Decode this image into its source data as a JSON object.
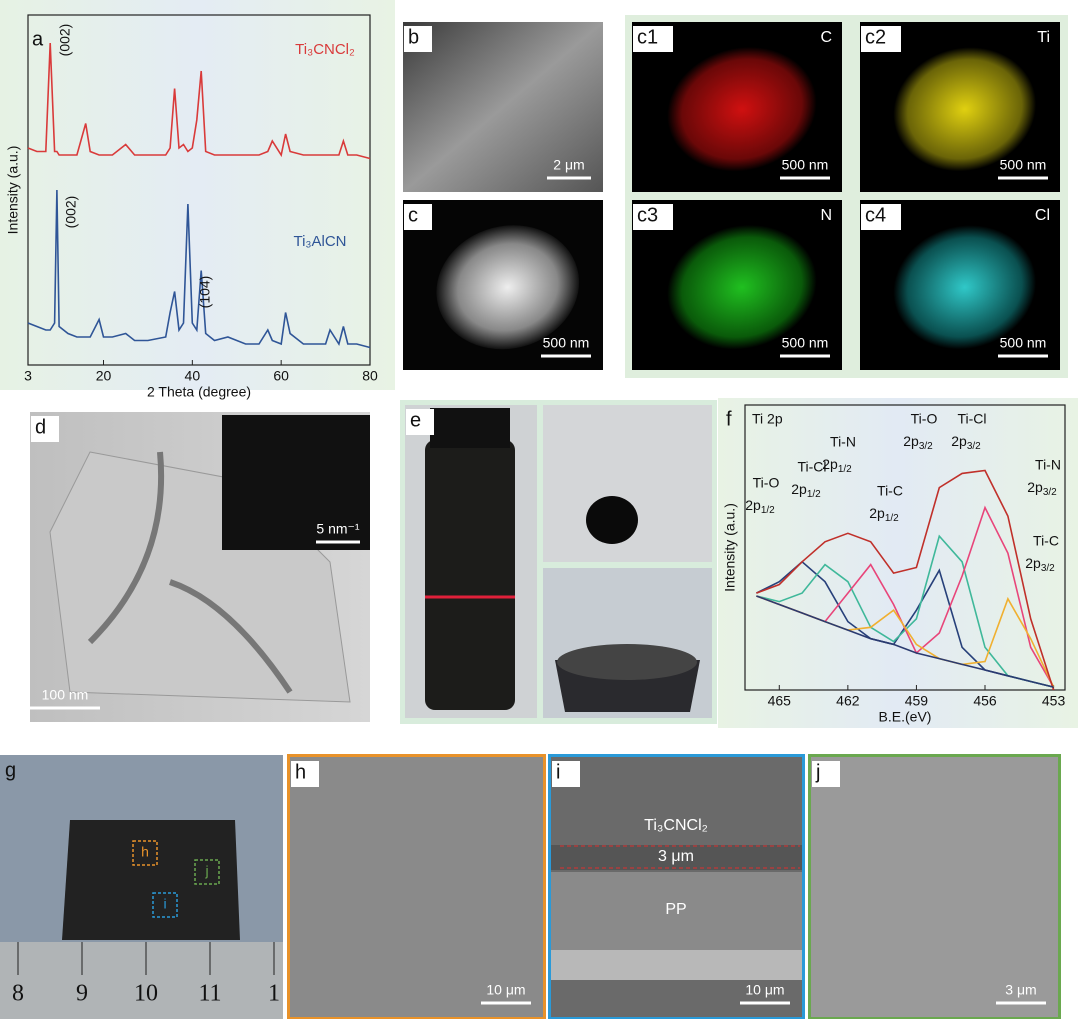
{
  "chart_data": [
    {
      "type": "line",
      "panel_label": "a",
      "xlabel": "2 Theta (degree)",
      "ylabel": "Intensity (a.u.)",
      "xlim": [
        3,
        80
      ],
      "xticks": [
        3,
        20,
        40,
        60,
        80
      ],
      "ylim": [
        0,
        100
      ],
      "x": [
        3,
        5,
        7,
        8,
        9,
        9.5,
        10,
        12,
        14,
        16,
        17,
        19,
        20,
        22,
        25,
        27,
        30,
        34,
        35,
        36,
        37,
        38,
        39,
        40,
        41,
        42,
        43,
        45,
        48,
        52,
        55,
        57,
        58,
        60,
        61,
        62,
        65,
        68,
        70,
        71,
        73,
        74,
        75,
        77,
        80
      ],
      "series": [
        {
          "name": "Ti₃CNCl₂",
          "color": "#d93a3a",
          "values": [
            62,
            61,
            61,
            92,
            61,
            61,
            60,
            60,
            60,
            69,
            61,
            60,
            60,
            60,
            63,
            60,
            60,
            60,
            62,
            79,
            62,
            63,
            61,
            62,
            70,
            84,
            61,
            60,
            60,
            60,
            60,
            61,
            64,
            60,
            66,
            61,
            60,
            60,
            60,
            60,
            60,
            64,
            60,
            60,
            59
          ]
        },
        {
          "name": "Ti₃AlCN",
          "color": "#2f5597",
          "values": [
            12,
            11,
            10,
            10,
            12,
            50,
            11,
            9,
            8,
            8,
            8,
            13,
            8,
            8,
            9,
            7,
            7,
            8,
            15,
            21,
            10,
            12,
            46,
            12,
            10,
            27,
            9,
            7,
            8,
            6,
            6,
            10,
            7,
            6,
            15,
            9,
            6,
            6,
            6,
            10,
            6,
            11,
            6,
            6,
            5
          ]
        }
      ],
      "annotations": [
        "(002)",
        "(002)",
        "(104)"
      ]
    },
    {
      "type": "line",
      "panel_label": "f",
      "inner_label": "Ti 2p",
      "xlabel": "B.E.(eV)",
      "ylabel": "Intensity (a.u.)",
      "xlim": [
        466.5,
        452.5
      ],
      "xticks": [
        465,
        462,
        459,
        456,
        453
      ],
      "ylim": [
        0,
        100
      ],
      "x": [
        466,
        465,
        464,
        463,
        462,
        461,
        460,
        459,
        458,
        457,
        456,
        455,
        454,
        453
      ],
      "series": [
        {
          "color": "#27407a",
          "values": [
            34,
            38,
            45,
            38,
            24,
            18,
            16,
            28,
            42,
            15,
            7,
            5,
            3,
            1
          ]
        },
        {
          "color": "#3fb89a",
          "values": [
            33,
            31,
            34,
            44,
            38,
            22,
            17,
            25,
            54,
            45,
            15,
            5,
            3,
            1
          ]
        },
        {
          "color": "#e8457a",
          "values": [
            33,
            30,
            27,
            24,
            34,
            44,
            30,
            13,
            20,
            40,
            64,
            48,
            15,
            1
          ]
        },
        {
          "color": "#f0b030",
          "values": [
            33,
            30,
            27,
            24,
            21,
            22,
            28,
            16,
            11,
            9,
            10,
            32,
            18,
            1
          ]
        },
        {
          "color": "#c0302a",
          "values": [
            34,
            37,
            45,
            52,
            55,
            52,
            41,
            43,
            71,
            76,
            77,
            61,
            25,
            0
          ]
        },
        {
          "color": "#2a3a70",
          "values": [
            33,
            30,
            27,
            24,
            21,
            18,
            16,
            13,
            11,
            9,
            7,
            5,
            3,
            1
          ]
        }
      ],
      "annotations": [
        {
          "name": "Ti-O",
          "orbital": "2p",
          "sub": "1/2"
        },
        {
          "name": "Ti-Cl",
          "orbital": "2p",
          "sub": "1/2"
        },
        {
          "name": "Ti-N",
          "orbital": "2p",
          "sub": "1/2"
        },
        {
          "name": "Ti-C",
          "orbital": "2p",
          "sub": "1/2"
        },
        {
          "name": "Ti-O",
          "orbital": "2p",
          "sub": "3/2"
        },
        {
          "name": "Ti-Cl",
          "orbital": "2p",
          "sub": "3/2"
        },
        {
          "name": "Ti-N",
          "orbital": "2p",
          "sub": "3/2"
        },
        {
          "name": "Ti-C",
          "orbital": "2p",
          "sub": "3/2"
        }
      ]
    }
  ],
  "images": {
    "b": {
      "label": "b",
      "scale_bar": "2 μm"
    },
    "c": {
      "label": "c",
      "scale_bar": "500 nm"
    },
    "c1": {
      "label": "c1",
      "element": "C",
      "scale_bar": "500 nm"
    },
    "c2": {
      "label": "c2",
      "element": "Ti",
      "scale_bar": "500 nm"
    },
    "c3": {
      "label": "c3",
      "element": "N",
      "scale_bar": "500 nm"
    },
    "c4": {
      "label": "c4",
      "element": "Cl",
      "scale_bar": "500 nm"
    },
    "d": {
      "label": "d",
      "scale_bar": "100 nm",
      "inset_scale_bar": "5 nm⁻¹"
    },
    "e": {
      "label": "e"
    },
    "g": {
      "label": "g",
      "regions": [
        "h",
        "i",
        "j"
      ],
      "ruler": [
        "8",
        "9",
        "10",
        "11",
        "1"
      ]
    },
    "h": {
      "label": "h",
      "scale_bar": "10 μm"
    },
    "i": {
      "label": "i",
      "layer": "Ti₃CNCl₂",
      "thickness": "3 μm",
      "substrate": "PP",
      "scale_bar": "10 μm"
    },
    "j": {
      "label": "j",
      "scale_bar": "3 μm"
    }
  }
}
